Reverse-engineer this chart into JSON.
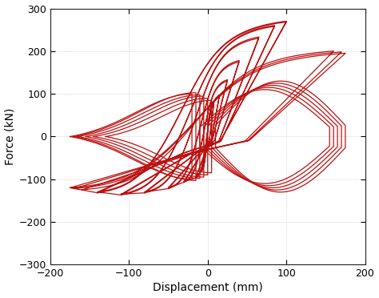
{
  "xlabel": "Displacement (mm)",
  "ylabel": "Force (kN)",
  "xlim": [
    -200,
    200
  ],
  "ylim": [
    -300,
    300
  ],
  "xticks": [
    -200,
    -100,
    0,
    100,
    200
  ],
  "yticks": [
    -300,
    -200,
    -100,
    0,
    100,
    200,
    300
  ],
  "line_color": "#bb1111",
  "line_width": 0.9,
  "grid_color": "#bbbbbb",
  "background_color": "#ffffff",
  "figsize": [
    4.74,
    3.72
  ],
  "dpi": 100
}
